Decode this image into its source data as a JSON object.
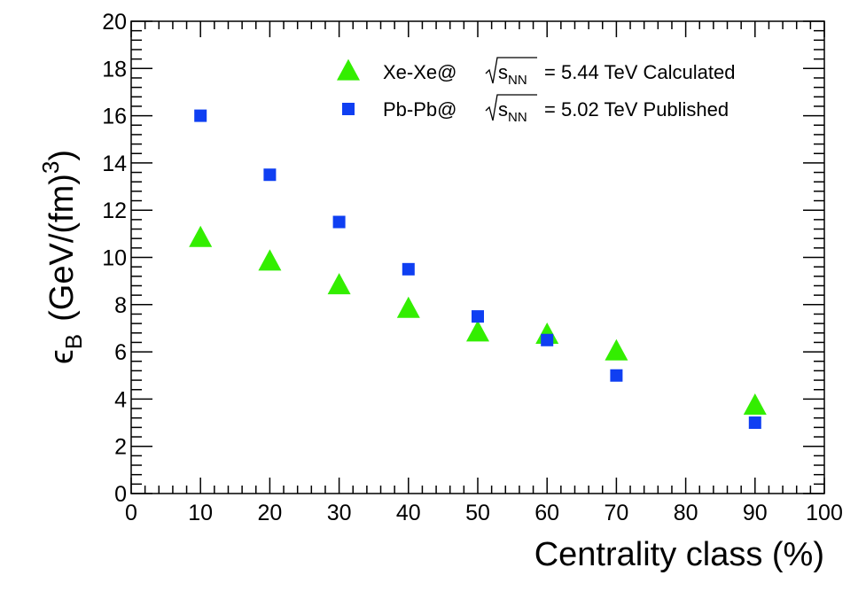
{
  "chart_data": {
    "type": "scatter",
    "title": "",
    "xlabel": "Centrality class (%)",
    "ylabel": {
      "symbol": "ϵ",
      "subscript": "B",
      "unit": "(GeV/(fm)",
      "superscript": "3",
      "close": ")"
    },
    "xlim": [
      0,
      100
    ],
    "ylim": [
      0,
      20
    ],
    "x_major_ticks": [
      0,
      10,
      20,
      30,
      40,
      50,
      60,
      70,
      80,
      90,
      100
    ],
    "y_major_ticks": [
      0,
      2,
      4,
      6,
      8,
      10,
      12,
      14,
      16,
      18,
      20
    ],
    "grid": false,
    "legend_position": "top-right",
    "series": [
      {
        "name": "Xe-Xe@ √sNN = 5.44 TeV Calculated",
        "legend": {
          "prefix": "Xe-Xe@",
          "sub": "NN",
          "suffix": "= 5.44 TeV Calculated"
        },
        "marker": "triangle",
        "color": "#33ee00",
        "x": [
          10,
          20,
          30,
          40,
          50,
          60,
          70,
          90
        ],
        "y": [
          10.8,
          9.8,
          8.8,
          7.8,
          6.8,
          6.7,
          6.0,
          3.7
        ]
      },
      {
        "name": "Pb-Pb@ √sNN = 5.02 TeV Published",
        "legend": {
          "prefix": "Pb-Pb@",
          "sub": "NN",
          "suffix": "= 5.02 TeV Published"
        },
        "marker": "square",
        "color": "#0f3ff2",
        "x": [
          10,
          20,
          30,
          40,
          50,
          60,
          70,
          90
        ],
        "y": [
          16.0,
          13.5,
          11.5,
          9.5,
          7.5,
          6.5,
          5.0,
          3.0
        ]
      }
    ]
  }
}
